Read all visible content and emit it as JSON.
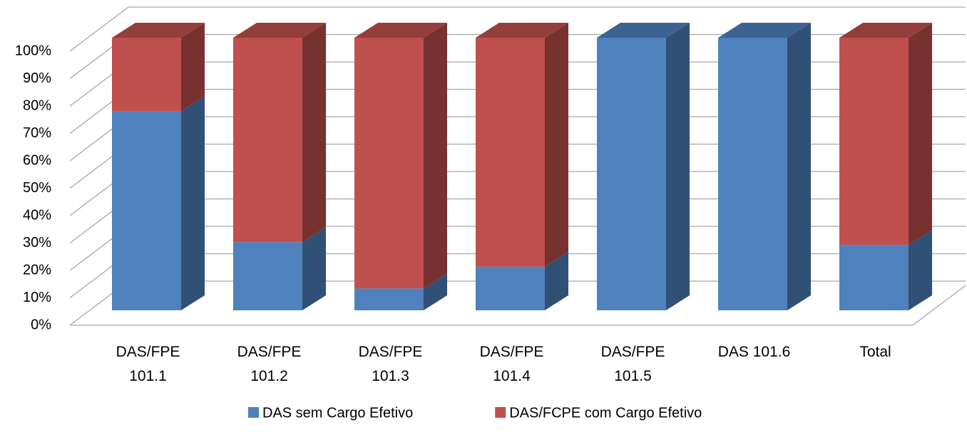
{
  "chart_data": {
    "type": "bar3d_stacked",
    "categories": [
      "DAS/FPE 101.1",
      "DAS/FPE 101.2",
      "DAS/FPE 101.3",
      "DAS/FPE 101.4",
      "DAS/FPE 101.5",
      "DAS 101.6",
      "Total"
    ],
    "series": [
      {
        "name": "DAS sem Cargo Efetivo",
        "color": "#4f81bd",
        "values": [
          73,
          25,
          8,
          16,
          100,
          100,
          24
        ]
      },
      {
        "name": "DAS/FCPE com Cargo Efetivo",
        "color": "#c0504d",
        "values": [
          27,
          75,
          92,
          84,
          0,
          0,
          76
        ]
      }
    ],
    "ylim": [
      0,
      100
    ],
    "yticks": [
      {
        "value": 0,
        "label": "0%"
      },
      {
        "value": 10,
        "label": "10%"
      },
      {
        "value": 20,
        "label": "20%"
      },
      {
        "value": 30,
        "label": "30%"
      },
      {
        "value": 40,
        "label": "40%"
      },
      {
        "value": 50,
        "label": "50%"
      },
      {
        "value": 60,
        "label": "60%"
      },
      {
        "value": 70,
        "label": "70%"
      },
      {
        "value": 80,
        "label": "80%"
      },
      {
        "value": 90,
        "label": "90%"
      },
      {
        "value": 100,
        "label": "100%"
      }
    ],
    "grid": true,
    "legend": "bottom"
  }
}
